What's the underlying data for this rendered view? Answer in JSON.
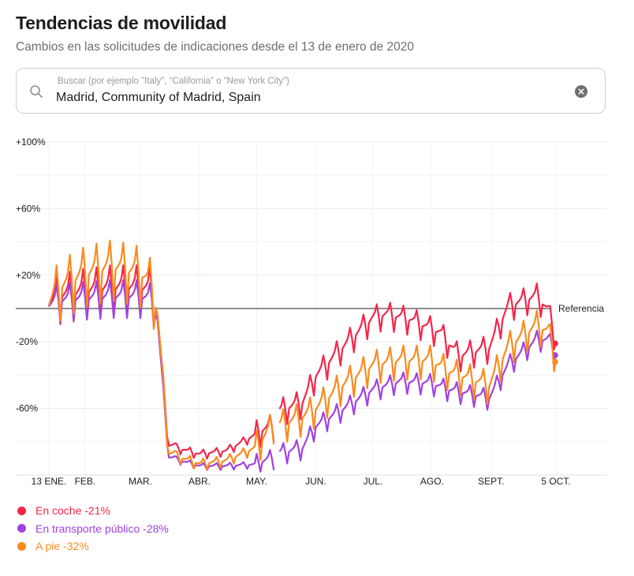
{
  "header": {
    "title": "Tendencias de movilidad",
    "subtitle": "Cambios en las solicitudes de indicaciones desde el 13 de enero de 2020"
  },
  "search": {
    "placeholder": "Buscar (por ejemplo \"Italy\", “California” o “New York City”)",
    "value": "Madrid, Community of Madrid, Spain",
    "search_icon": "search-icon",
    "clear_icon": "clear-icon"
  },
  "legend": {
    "items": [
      {
        "label": "En coche -21%",
        "color": "#f5264a"
      },
      {
        "label": "En transporte público -28%",
        "color": "#a142e0"
      },
      {
        "label": "A pie -32%",
        "color": "#fb8a1d"
      }
    ]
  },
  "chart_data": {
    "type": "line",
    "baseline_label": "Referencia",
    "ylim": [
      -100,
      100
    ],
    "y_ticks": [
      100,
      60,
      20,
      -20,
      -60
    ],
    "y_tick_labels": [
      "+100%",
      "+60%",
      "+20%",
      "-20%",
      "-60%"
    ],
    "x_ticks": [
      {
        "date": "2020-01-13",
        "label": "13 ENE."
      },
      {
        "date": "2020-02-01",
        "label": "FEB."
      },
      {
        "date": "2020-03-01",
        "label": "MAR."
      },
      {
        "date": "2020-04-01",
        "label": "ABR."
      },
      {
        "date": "2020-05-01",
        "label": "MAY."
      },
      {
        "date": "2020-06-01",
        "label": "JUN."
      },
      {
        "date": "2020-07-01",
        "label": "JUL."
      },
      {
        "date": "2020-08-01",
        "label": "AGO."
      },
      {
        "date": "2020-09-01",
        "label": "SEPT."
      },
      {
        "date": "2020-10-05",
        "label": "5 OCT."
      }
    ],
    "x_start": "2020-01-13",
    "x_end": "2020-10-05",
    "gaps": [
      [
        "2020-05-11",
        "2020-05-12"
      ]
    ],
    "series": [
      {
        "name": "En coche",
        "color": "#f5264a",
        "knots": [
          [
            "2020-01-13",
            0
          ],
          [
            "2020-01-19",
            5
          ],
          [
            "2020-02-01",
            8
          ],
          [
            "2020-02-15",
            10
          ],
          [
            "2020-03-01",
            10
          ],
          [
            "2020-03-07",
            8
          ],
          [
            "2020-03-10",
            -5
          ],
          [
            "2020-03-14",
            -60
          ],
          [
            "2020-03-16",
            -83
          ],
          [
            "2020-04-01",
            -88
          ],
          [
            "2020-04-15",
            -86
          ],
          [
            "2020-05-01",
            -76
          ],
          [
            "2020-05-10",
            -72
          ],
          [
            "2020-05-13",
            -63
          ],
          [
            "2020-05-25",
            -58
          ],
          [
            "2020-06-01",
            -42
          ],
          [
            "2020-06-15",
            -25
          ],
          [
            "2020-07-01",
            -7
          ],
          [
            "2020-07-08",
            -5
          ],
          [
            "2020-07-20",
            -8
          ],
          [
            "2020-08-05",
            -16
          ],
          [
            "2020-08-15",
            -30
          ],
          [
            "2020-08-31",
            -25
          ],
          [
            "2020-09-10",
            0
          ],
          [
            "2020-09-25",
            6
          ],
          [
            "2020-10-01",
            -3
          ],
          [
            "2020-10-05",
            -21
          ]
        ]
      },
      {
        "name": "En transporte público",
        "color": "#a142e0",
        "knots": [
          [
            "2020-01-13",
            0
          ],
          [
            "2020-01-19",
            3
          ],
          [
            "2020-02-01",
            4
          ],
          [
            "2020-02-15",
            5
          ],
          [
            "2020-03-01",
            5
          ],
          [
            "2020-03-07",
            3
          ],
          [
            "2020-03-10",
            -8
          ],
          [
            "2020-03-14",
            -65
          ],
          [
            "2020-03-16",
            -90
          ],
          [
            "2020-04-01",
            -95
          ],
          [
            "2020-04-15",
            -95
          ],
          [
            "2020-05-01",
            -94
          ],
          [
            "2020-05-10",
            -91
          ],
          [
            "2020-05-13",
            -88
          ],
          [
            "2020-05-25",
            -85
          ],
          [
            "2020-06-01",
            -72
          ],
          [
            "2020-06-15",
            -62
          ],
          [
            "2020-07-01",
            -50
          ],
          [
            "2020-07-15",
            -45
          ],
          [
            "2020-07-31",
            -46
          ],
          [
            "2020-08-10",
            -50
          ],
          [
            "2020-08-31",
            -55
          ],
          [
            "2020-09-10",
            -35
          ],
          [
            "2020-09-25",
            -20
          ],
          [
            "2020-10-01",
            -20
          ],
          [
            "2020-10-05",
            -28
          ]
        ]
      },
      {
        "name": "A pie",
        "color": "#fb8a1d",
        "knots": [
          [
            "2020-01-13",
            0
          ],
          [
            "2020-01-19",
            10
          ],
          [
            "2020-02-01",
            18
          ],
          [
            "2020-02-15",
            22
          ],
          [
            "2020-03-01",
            18
          ],
          [
            "2020-03-07",
            10
          ],
          [
            "2020-03-10",
            -5
          ],
          [
            "2020-03-14",
            -62
          ],
          [
            "2020-03-16",
            -88
          ],
          [
            "2020-04-01",
            -94
          ],
          [
            "2020-04-15",
            -92
          ],
          [
            "2020-05-01",
            -84
          ],
          [
            "2020-05-10",
            -72
          ],
          [
            "2020-05-13",
            -72
          ],
          [
            "2020-05-25",
            -67
          ],
          [
            "2020-06-01",
            -62
          ],
          [
            "2020-06-15",
            -48
          ],
          [
            "2020-07-01",
            -36
          ],
          [
            "2020-07-15",
            -33
          ],
          [
            "2020-07-31",
            -33
          ],
          [
            "2020-08-10",
            -40
          ],
          [
            "2020-08-31",
            -48
          ],
          [
            "2020-09-10",
            -25
          ],
          [
            "2020-09-25",
            -12
          ],
          [
            "2020-10-01",
            -16
          ],
          [
            "2020-10-05",
            -32
          ]
        ]
      }
    ],
    "endpoint_values": {
      "En coche": -21,
      "En transporte público": -28,
      "A pie": -32
    },
    "grid": true,
    "legend_position": "bottom-left"
  }
}
